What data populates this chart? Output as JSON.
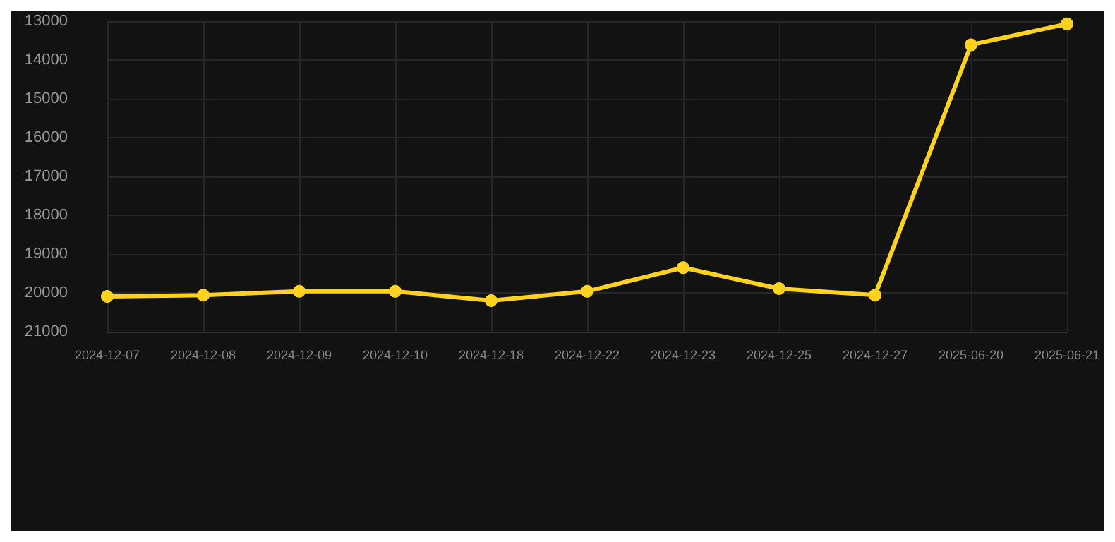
{
  "chart_data": {
    "type": "line",
    "categories": [
      "2024-12-07",
      "2024-12-08",
      "2024-12-09",
      "2024-12-10",
      "2024-12-18",
      "2024-12-22",
      "2024-12-23",
      "2024-12-25",
      "2024-12-27",
      "2025-06-20",
      "2025-06-21"
    ],
    "series": [
      {
        "color": "#ffd21f",
        "values": [
          20090,
          20060,
          19960,
          19960,
          20200,
          19960,
          19350,
          19890,
          20060,
          13610,
          13070
        ]
      }
    ],
    "ylim": [
      21000,
      13000
    ],
    "yticks": [
      13000,
      14000,
      15000,
      16000,
      17000,
      18000,
      19000,
      20000,
      21000
    ],
    "grid": true,
    "marker": "circle",
    "line_style": "solid"
  }
}
